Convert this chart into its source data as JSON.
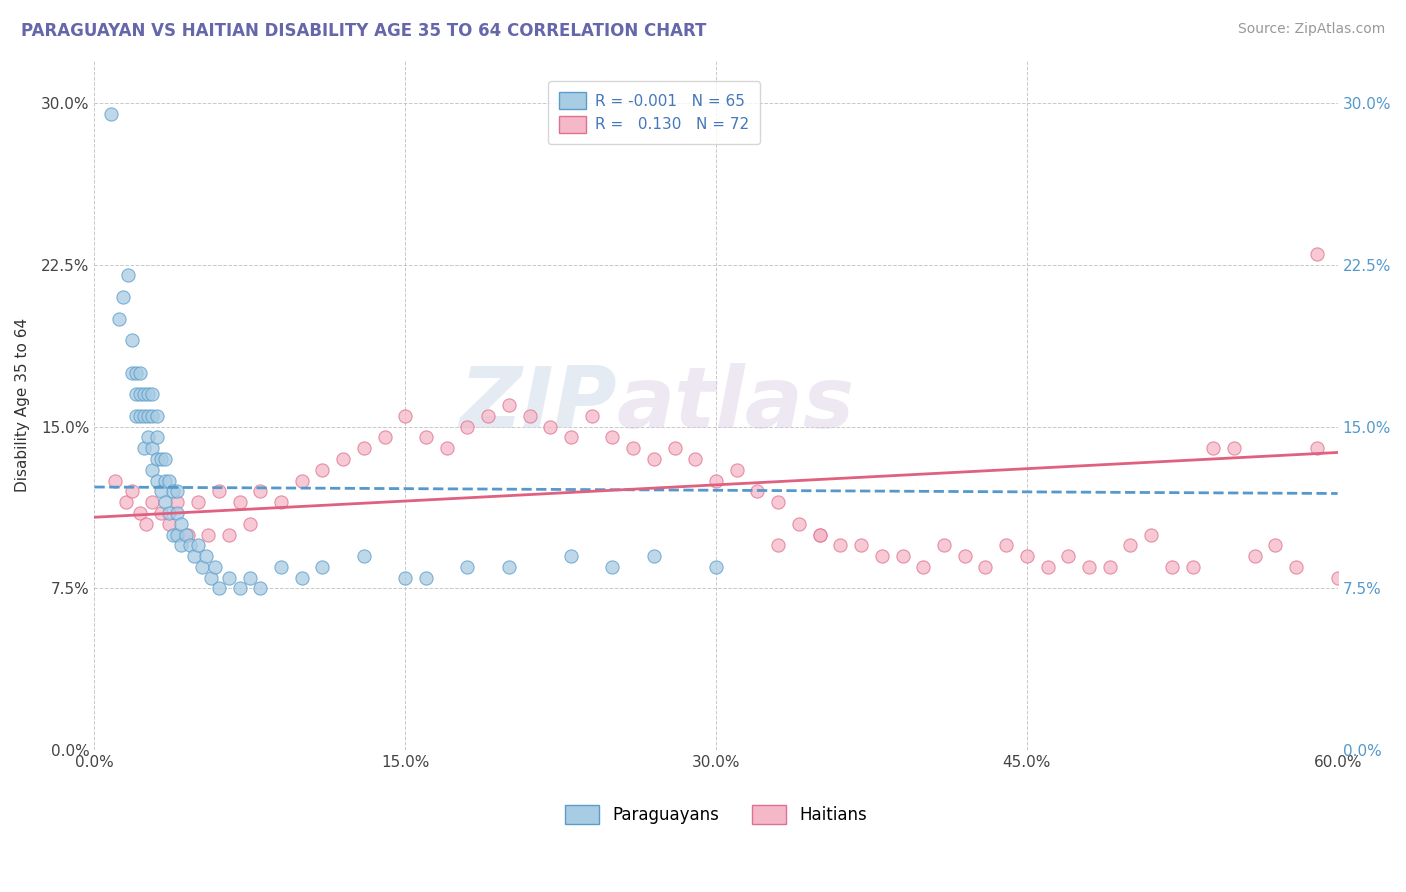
{
  "title": "PARAGUAYAN VS HAITIAN DISABILITY AGE 35 TO 64 CORRELATION CHART",
  "source_text": "Source: ZipAtlas.com",
  "ylabel": "Disability Age 35 to 64",
  "xlabel": "",
  "xmin": 0.0,
  "xmax": 0.6,
  "ymin": 0.0,
  "ymax": 0.32,
  "yticks": [
    0.0,
    0.075,
    0.15,
    0.225,
    0.3
  ],
  "ytick_labels": [
    "0.0%",
    "7.5%",
    "15.0%",
    "22.5%",
    "30.0%"
  ],
  "xticks": [
    0.0,
    0.15,
    0.3,
    0.45,
    0.6
  ],
  "xtick_labels": [
    "0.0%",
    "15.0%",
    "30.0%",
    "45.0%",
    "60.0%"
  ],
  "color_blue": "#a8cce4",
  "color_pink": "#f4b8c8",
  "edge_blue": "#5b9dc9",
  "edge_pink": "#e07090",
  "line_blue": "#5599cc",
  "line_pink": "#e06080",
  "watermark_zip": "ZIP",
  "watermark_atlas": "atlas",
  "blue_scatter_x": [
    0.008,
    0.012,
    0.014,
    0.016,
    0.018,
    0.018,
    0.02,
    0.02,
    0.02,
    0.022,
    0.022,
    0.022,
    0.024,
    0.024,
    0.024,
    0.026,
    0.026,
    0.026,
    0.028,
    0.028,
    0.028,
    0.028,
    0.03,
    0.03,
    0.03,
    0.03,
    0.032,
    0.032,
    0.034,
    0.034,
    0.034,
    0.036,
    0.036,
    0.038,
    0.038,
    0.04,
    0.04,
    0.04,
    0.042,
    0.042,
    0.044,
    0.046,
    0.048,
    0.05,
    0.052,
    0.054,
    0.056,
    0.058,
    0.06,
    0.065,
    0.07,
    0.075,
    0.08,
    0.09,
    0.1,
    0.11,
    0.13,
    0.15,
    0.16,
    0.18,
    0.2,
    0.23,
    0.25,
    0.27,
    0.3
  ],
  "blue_scatter_y": [
    0.295,
    0.2,
    0.21,
    0.22,
    0.175,
    0.19,
    0.155,
    0.165,
    0.175,
    0.155,
    0.165,
    0.175,
    0.14,
    0.155,
    0.165,
    0.145,
    0.155,
    0.165,
    0.13,
    0.14,
    0.155,
    0.165,
    0.125,
    0.135,
    0.145,
    0.155,
    0.12,
    0.135,
    0.115,
    0.125,
    0.135,
    0.11,
    0.125,
    0.1,
    0.12,
    0.1,
    0.11,
    0.12,
    0.095,
    0.105,
    0.1,
    0.095,
    0.09,
    0.095,
    0.085,
    0.09,
    0.08,
    0.085,
    0.075,
    0.08,
    0.075,
    0.08,
    0.075,
    0.085,
    0.08,
    0.085,
    0.09,
    0.08,
    0.08,
    0.085,
    0.085,
    0.09,
    0.085,
    0.09,
    0.085
  ],
  "pink_scatter_x": [
    0.01,
    0.015,
    0.018,
    0.022,
    0.025,
    0.028,
    0.032,
    0.036,
    0.04,
    0.045,
    0.05,
    0.055,
    0.06,
    0.065,
    0.07,
    0.075,
    0.08,
    0.09,
    0.1,
    0.11,
    0.12,
    0.13,
    0.14,
    0.15,
    0.16,
    0.17,
    0.18,
    0.19,
    0.2,
    0.21,
    0.22,
    0.23,
    0.24,
    0.25,
    0.26,
    0.27,
    0.28,
    0.29,
    0.3,
    0.31,
    0.32,
    0.33,
    0.34,
    0.35,
    0.36,
    0.38,
    0.4,
    0.42,
    0.44,
    0.46,
    0.47,
    0.49,
    0.51,
    0.53,
    0.55,
    0.56,
    0.57,
    0.58,
    0.59,
    0.6,
    0.41,
    0.43,
    0.45,
    0.48,
    0.5,
    0.52,
    0.54,
    0.37,
    0.39,
    0.35,
    0.33,
    0.59
  ],
  "pink_scatter_y": [
    0.125,
    0.115,
    0.12,
    0.11,
    0.105,
    0.115,
    0.11,
    0.105,
    0.115,
    0.1,
    0.115,
    0.1,
    0.12,
    0.1,
    0.115,
    0.105,
    0.12,
    0.115,
    0.125,
    0.13,
    0.135,
    0.14,
    0.145,
    0.155,
    0.145,
    0.14,
    0.15,
    0.155,
    0.16,
    0.155,
    0.15,
    0.145,
    0.155,
    0.145,
    0.14,
    0.135,
    0.14,
    0.135,
    0.125,
    0.13,
    0.12,
    0.115,
    0.105,
    0.1,
    0.095,
    0.09,
    0.085,
    0.09,
    0.095,
    0.085,
    0.09,
    0.085,
    0.1,
    0.085,
    0.14,
    0.09,
    0.095,
    0.085,
    0.14,
    0.08,
    0.095,
    0.085,
    0.09,
    0.085,
    0.095,
    0.085,
    0.14,
    0.095,
    0.09,
    0.1,
    0.095,
    0.23
  ],
  "blue_trend_x0": 0.0,
  "blue_trend_y0": 0.122,
  "blue_trend_x1": 0.6,
  "blue_trend_y1": 0.119,
  "pink_trend_x0": 0.0,
  "pink_trend_y0": 0.108,
  "pink_trend_x1": 0.6,
  "pink_trend_y1": 0.138
}
